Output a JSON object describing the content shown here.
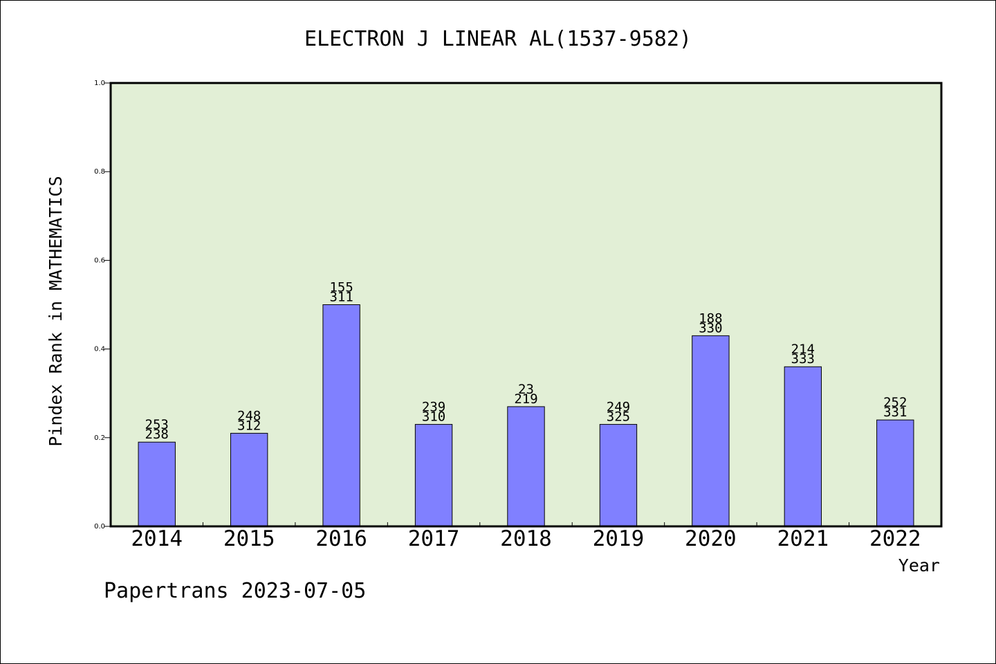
{
  "chart_data": {
    "type": "bar",
    "title": "ELECTRON J LINEAR AL(1537-9582)",
    "xlabel": "Year",
    "ylabel": "Pindex Rank in MATHEMATICS",
    "footer": "Papertrans 2023-07-05",
    "categories": [
      "2014",
      "2015",
      "2016",
      "2017",
      "2018",
      "2019",
      "2020",
      "2021",
      "2022"
    ],
    "values": [
      0.19,
      0.21,
      0.5,
      0.23,
      0.27,
      0.23,
      0.43,
      0.36,
      0.24
    ],
    "label_top": [
      "253",
      "248",
      "155",
      "239",
      "23",
      "249",
      "188",
      "214",
      "252"
    ],
    "label_bottom": [
      "238",
      "312",
      "311",
      "310",
      "219",
      "325",
      "330",
      "333",
      "331"
    ],
    "ylim": [
      0,
      1.0
    ],
    "yticks": [
      "0.0",
      "0.2",
      "0.4",
      "0.6",
      "0.8",
      "1.0"
    ],
    "grid": false,
    "colors": {
      "plot_background": "#e2efd6",
      "bar_fill": "#8080ff",
      "bar_stroke": "#000000"
    }
  }
}
